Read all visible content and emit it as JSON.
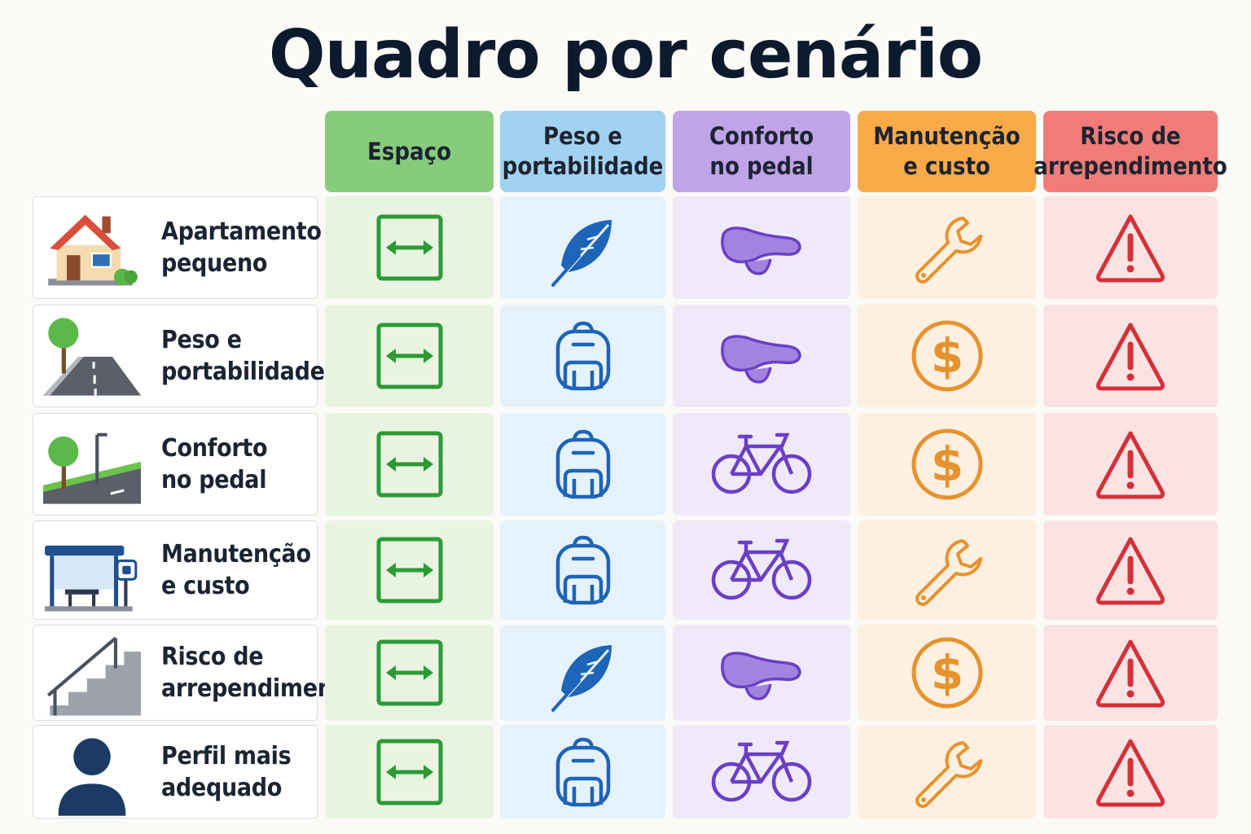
{
  "title": "Quadro por cenário",
  "columns": [
    {
      "label": "Espaço",
      "header_color": "#86cc7c",
      "cell_color": "#e8f4e1",
      "icon_color": "#2c9a36"
    },
    {
      "label": "Peso e\nportabilidade",
      "header_color": "#a2d2f2",
      "cell_color": "#e5f2fc",
      "icon_color": "#1e64b8"
    },
    {
      "label": "Conforto\nno pedal",
      "header_color": "#bfa4e8",
      "cell_color": "#efe9f9",
      "icon_color": "#6a3fc4"
    },
    {
      "label": "Manutenção\ne custo",
      "header_color": "#f9aa48",
      "cell_color": "#fdf0e0",
      "icon_color": "#e6922e"
    },
    {
      "label": "Risco de\narrependimento",
      "header_color": "#f07b78",
      "cell_color": "#fbe3e3",
      "icon_color": "#d43038"
    }
  ],
  "rows": [
    {
      "label": "Apartamento\npequeno",
      "picture": "house-icon",
      "icons": [
        "arrows-icon",
        "feather-icon",
        "saddle-icon",
        "wrench-icon",
        "warning-icon"
      ]
    },
    {
      "label": "Peso e\nportabilidade",
      "picture": "road-tree-icon",
      "icons": [
        "arrows-icon",
        "backpack-icon",
        "saddle-icon",
        "dollar-icon",
        "warning-icon"
      ]
    },
    {
      "label": "Conforto\nno pedal",
      "picture": "street-lamp-icon",
      "icons": [
        "arrows-icon",
        "backpack-icon",
        "bicycle-icon",
        "dollar-icon",
        "warning-icon"
      ]
    },
    {
      "label": "Manutenção\ne custo",
      "picture": "bus-stop-icon",
      "icons": [
        "arrows-icon",
        "backpack-icon",
        "bicycle-icon",
        "wrench-icon",
        "warning-icon"
      ]
    },
    {
      "label": "Risco de\narrependimento",
      "picture": "stairs-icon",
      "icons": [
        "arrows-icon",
        "feather-icon",
        "saddle-icon",
        "dollar-icon",
        "warning-icon"
      ]
    },
    {
      "label": "Perfil mais\nadequado",
      "picture": "person-icon",
      "icons": [
        "arrows-icon",
        "backpack-icon",
        "bicycle-icon",
        "wrench-icon",
        "warning-icon"
      ]
    }
  ]
}
